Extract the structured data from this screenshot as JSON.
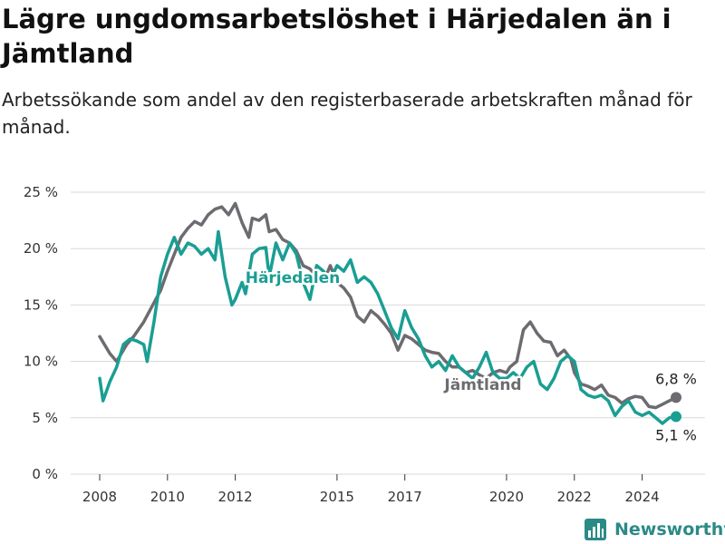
{
  "title": "Lägre ungdomsarbetslöshet i Härjedalen än i Jämtland",
  "subtitle": "Arbetssökande som andel av den registerbaserade arbetskraften månad för månad.",
  "brand": "Newsworthy",
  "colors": {
    "harjedalen": "#1a9e93",
    "jamtland": "#6e6b70",
    "grid": "#d9d9d9",
    "brand": "#2b8a86"
  },
  "chart_data": {
    "type": "line",
    "x_ticks": [
      2008,
      2010,
      2012,
      2015,
      2017,
      2020,
      2022,
      2024
    ],
    "x_tick_labels": [
      "2008",
      "2010",
      "2012",
      "2015",
      "2017",
      "2020",
      "2022",
      "2024"
    ],
    "y_ticks": [
      0,
      5,
      10,
      15,
      20,
      25
    ],
    "y_tick_labels": [
      "0 %",
      "5 %",
      "10 %",
      "15 %",
      "20 %",
      "25 %"
    ],
    "ylim": [
      0,
      25
    ],
    "grid": true,
    "series": [
      {
        "name": "Jämtland",
        "color": "#6e6b70",
        "end_label": "6,8 %",
        "points": [
          [
            2008.0,
            12.2
          ],
          [
            2008.3,
            10.7
          ],
          [
            2008.5,
            10.0
          ],
          [
            2008.8,
            11.5
          ],
          [
            2009.0,
            12.2
          ],
          [
            2009.3,
            13.5
          ],
          [
            2009.6,
            15.2
          ],
          [
            2009.8,
            16.3
          ],
          [
            2010.0,
            18.0
          ],
          [
            2010.2,
            19.5
          ],
          [
            2010.4,
            21.0
          ],
          [
            2010.6,
            21.8
          ],
          [
            2010.8,
            22.4
          ],
          [
            2011.0,
            22.1
          ],
          [
            2011.2,
            23.0
          ],
          [
            2011.4,
            23.5
          ],
          [
            2011.6,
            23.7
          ],
          [
            2011.8,
            23.0
          ],
          [
            2012.0,
            24.0
          ],
          [
            2012.2,
            22.3
          ],
          [
            2012.4,
            21.0
          ],
          [
            2012.5,
            22.7
          ],
          [
            2012.7,
            22.5
          ],
          [
            2012.9,
            23.0
          ],
          [
            2013.0,
            21.5
          ],
          [
            2013.2,
            21.7
          ],
          [
            2013.4,
            20.8
          ],
          [
            2013.6,
            20.5
          ],
          [
            2013.8,
            19.8
          ],
          [
            2014.0,
            18.5
          ],
          [
            2014.2,
            18.2
          ],
          [
            2014.4,
            17.5
          ],
          [
            2014.6,
            17.0
          ],
          [
            2014.8,
            18.5
          ],
          [
            2015.0,
            17.0
          ],
          [
            2015.2,
            16.5
          ],
          [
            2015.4,
            15.7
          ],
          [
            2015.6,
            14.0
          ],
          [
            2015.8,
            13.5
          ],
          [
            2016.0,
            14.5
          ],
          [
            2016.2,
            14.0
          ],
          [
            2016.4,
            13.3
          ],
          [
            2016.6,
            12.5
          ],
          [
            2016.8,
            11.0
          ],
          [
            2017.0,
            12.3
          ],
          [
            2017.2,
            12.0
          ],
          [
            2017.4,
            11.5
          ],
          [
            2017.6,
            11.0
          ],
          [
            2017.8,
            10.8
          ],
          [
            2018.0,
            10.7
          ],
          [
            2018.2,
            10.0
          ],
          [
            2018.4,
            9.5
          ],
          [
            2018.6,
            9.5
          ],
          [
            2018.8,
            9.0
          ],
          [
            2019.0,
            9.2
          ],
          [
            2019.2,
            8.8
          ],
          [
            2019.4,
            8.5
          ],
          [
            2019.6,
            9.0
          ],
          [
            2019.8,
            9.2
          ],
          [
            2020.0,
            9.0
          ],
          [
            2020.1,
            9.5
          ],
          [
            2020.3,
            10.0
          ],
          [
            2020.5,
            12.8
          ],
          [
            2020.7,
            13.5
          ],
          [
            2020.9,
            12.5
          ],
          [
            2021.1,
            11.8
          ],
          [
            2021.3,
            11.7
          ],
          [
            2021.5,
            10.5
          ],
          [
            2021.7,
            11.0
          ],
          [
            2021.9,
            10.2
          ],
          [
            2022.0,
            9.0
          ],
          [
            2022.2,
            8.0
          ],
          [
            2022.4,
            7.8
          ],
          [
            2022.6,
            7.5
          ],
          [
            2022.8,
            7.9
          ],
          [
            2023.0,
            7.0
          ],
          [
            2023.2,
            6.8
          ],
          [
            2023.4,
            6.3
          ],
          [
            2023.6,
            6.7
          ],
          [
            2023.8,
            6.9
          ],
          [
            2024.0,
            6.8
          ],
          [
            2024.2,
            6.0
          ],
          [
            2024.4,
            5.9
          ],
          [
            2024.6,
            6.2
          ],
          [
            2024.8,
            6.5
          ],
          [
            2025.0,
            6.8
          ]
        ]
      },
      {
        "name": "Härjedalen",
        "color": "#1a9e93",
        "end_label": "5,1 %",
        "points": [
          [
            2008.0,
            8.5
          ],
          [
            2008.1,
            6.5
          ],
          [
            2008.3,
            8.2
          ],
          [
            2008.5,
            9.5
          ],
          [
            2008.7,
            11.5
          ],
          [
            2008.9,
            12.0
          ],
          [
            2009.1,
            11.8
          ],
          [
            2009.3,
            11.5
          ],
          [
            2009.4,
            10.0
          ],
          [
            2009.6,
            13.5
          ],
          [
            2009.8,
            17.5
          ],
          [
            2010.0,
            19.5
          ],
          [
            2010.2,
            21.0
          ],
          [
            2010.4,
            19.5
          ],
          [
            2010.6,
            20.5
          ],
          [
            2010.8,
            20.2
          ],
          [
            2011.0,
            19.5
          ],
          [
            2011.2,
            20.0
          ],
          [
            2011.4,
            19.0
          ],
          [
            2011.5,
            21.5
          ],
          [
            2011.7,
            17.5
          ],
          [
            2011.9,
            15.0
          ],
          [
            2012.0,
            15.5
          ],
          [
            2012.2,
            17.0
          ],
          [
            2012.3,
            16.0
          ],
          [
            2012.5,
            19.5
          ],
          [
            2012.7,
            20.0
          ],
          [
            2012.9,
            20.1
          ],
          [
            2013.0,
            17.5
          ],
          [
            2013.2,
            20.5
          ],
          [
            2013.4,
            19.0
          ],
          [
            2013.6,
            20.5
          ],
          [
            2013.8,
            19.5
          ],
          [
            2014.0,
            17.0
          ],
          [
            2014.2,
            15.5
          ],
          [
            2014.4,
            18.5
          ],
          [
            2014.6,
            18.0
          ],
          [
            2014.8,
            17.2
          ],
          [
            2015.0,
            18.5
          ],
          [
            2015.2,
            18.0
          ],
          [
            2015.4,
            19.0
          ],
          [
            2015.6,
            17.0
          ],
          [
            2015.8,
            17.5
          ],
          [
            2016.0,
            17.0
          ],
          [
            2016.2,
            16.0
          ],
          [
            2016.4,
            14.5
          ],
          [
            2016.6,
            13.0
          ],
          [
            2016.8,
            12.0
          ],
          [
            2017.0,
            14.5
          ],
          [
            2017.2,
            13.0
          ],
          [
            2017.4,
            12.0
          ],
          [
            2017.6,
            10.5
          ],
          [
            2017.8,
            9.5
          ],
          [
            2018.0,
            10.0
          ],
          [
            2018.2,
            9.2
          ],
          [
            2018.4,
            10.5
          ],
          [
            2018.6,
            9.5
          ],
          [
            2018.8,
            9.0
          ],
          [
            2019.0,
            8.5
          ],
          [
            2019.2,
            9.5
          ],
          [
            2019.4,
            10.8
          ],
          [
            2019.6,
            9.0
          ],
          [
            2019.8,
            8.5
          ],
          [
            2020.0,
            8.5
          ],
          [
            2020.2,
            9.0
          ],
          [
            2020.4,
            8.5
          ],
          [
            2020.6,
            9.5
          ],
          [
            2020.8,
            10.0
          ],
          [
            2021.0,
            8.0
          ],
          [
            2021.2,
            7.5
          ],
          [
            2021.4,
            8.5
          ],
          [
            2021.6,
            10.0
          ],
          [
            2021.8,
            10.5
          ],
          [
            2022.0,
            10.0
          ],
          [
            2022.2,
            7.5
          ],
          [
            2022.4,
            7.0
          ],
          [
            2022.6,
            6.8
          ],
          [
            2022.8,
            7.0
          ],
          [
            2023.0,
            6.5
          ],
          [
            2023.2,
            5.2
          ],
          [
            2023.4,
            6.0
          ],
          [
            2023.6,
            6.5
          ],
          [
            2023.8,
            5.5
          ],
          [
            2024.0,
            5.2
          ],
          [
            2024.2,
            5.5
          ],
          [
            2024.4,
            5.0
          ],
          [
            2024.6,
            4.5
          ],
          [
            2024.8,
            5.0
          ],
          [
            2025.0,
            5.1
          ]
        ]
      }
    ],
    "annotations": [
      {
        "text": "Härjedalen",
        "series": "Härjedalen"
      },
      {
        "text": "Jämtland",
        "series": "Jämtland"
      }
    ]
  }
}
